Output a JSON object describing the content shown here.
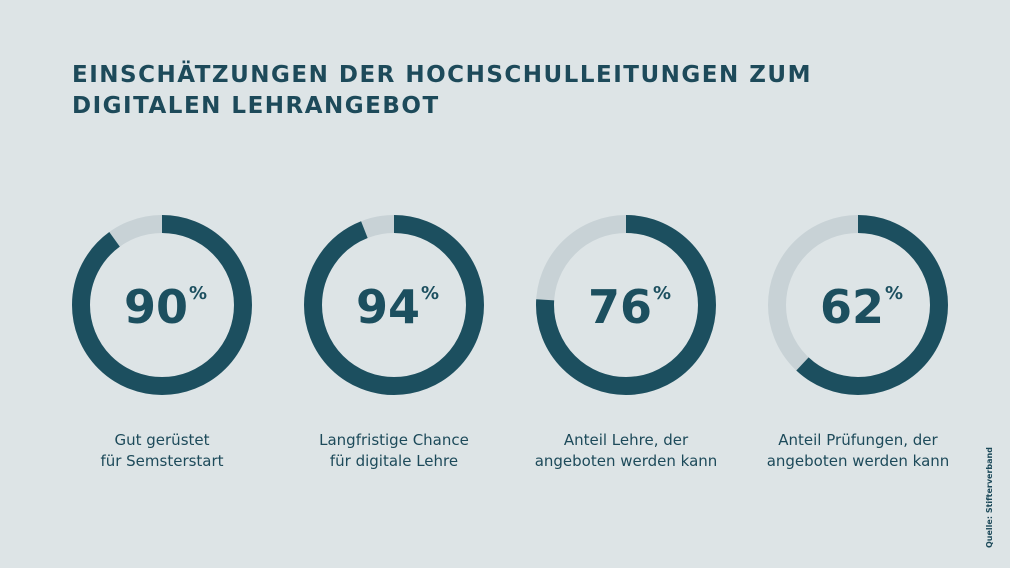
{
  "title_lines": [
    "EINSCHÄTZUNGEN DER HOCHSCHULLEITUNGEN ZUM",
    "DIGITALEN LEHRANGEBOT"
  ],
  "source": "Quelle: Stifterverband",
  "colors": {
    "filled": "#1c4f5f",
    "remaining": "#c8d2d6",
    "background": "#dde4e6"
  },
  "chart_data": {
    "type": "pie",
    "variant": "donut",
    "items": [
      {
        "value": 90,
        "value_label": "90",
        "unit": "%",
        "label_lines": [
          "Gut gerüstet",
          "für Semsterstart"
        ]
      },
      {
        "value": 94,
        "value_label": "94",
        "unit": "%",
        "label_lines": [
          "Langfristige Chance",
          "für digitale Lehre"
        ]
      },
      {
        "value": 76,
        "value_label": "76",
        "unit": "%",
        "label_lines": [
          "Anteil Lehre, der",
          "angeboten werden kann"
        ]
      },
      {
        "value": 62,
        "value_label": "62",
        "unit": "%",
        "label_lines": [
          "Anteil Prüfungen, der",
          "angeboten werden kann"
        ]
      }
    ]
  }
}
